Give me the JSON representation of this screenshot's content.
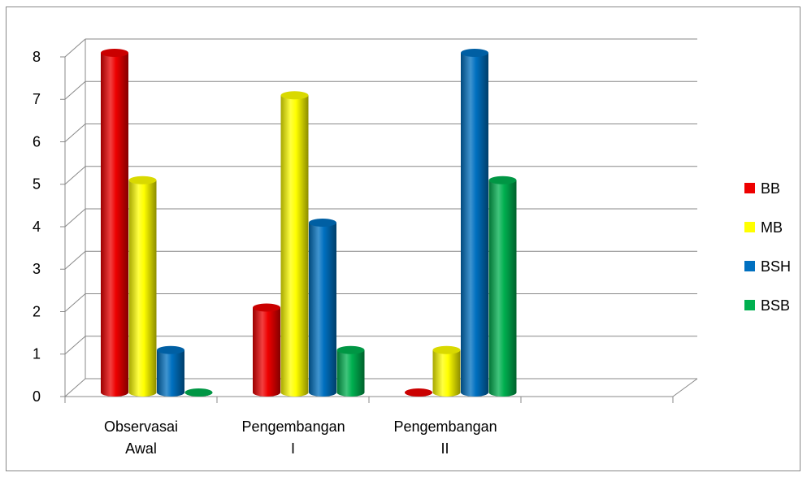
{
  "chart_data": {
    "type": "cylinder-bar",
    "categories": [
      "Observasai Awal",
      "Pengembangan I",
      "Pengembangan II",
      null
    ],
    "series": [
      {
        "name": "BB",
        "color": "#ee0000",
        "values": [
          8,
          2,
          0,
          null
        ]
      },
      {
        "name": "MB",
        "color": "#ffff00",
        "values": [
          5,
          7,
          1,
          null
        ]
      },
      {
        "name": "BSH",
        "color": "#0070c0",
        "values": [
          1,
          4,
          8,
          null
        ]
      },
      {
        "name": "BSB",
        "color": "#00b050",
        "values": [
          0,
          1,
          5,
          null
        ]
      }
    ],
    "ylim": [
      0,
      8
    ],
    "yticks": [
      0,
      1,
      2,
      3,
      4,
      5,
      6,
      7,
      8
    ],
    "grid": true,
    "legend": "right"
  }
}
